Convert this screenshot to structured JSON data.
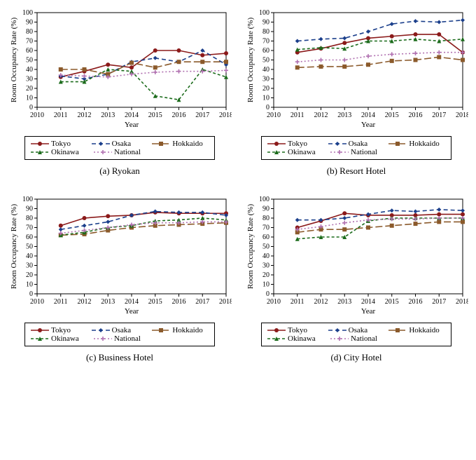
{
  "colors": {
    "tokyo": "#8b1a1a",
    "osaka": "#1b3f8b",
    "hokkaido": "#8b5a2b",
    "okinawa": "#1b6b1b",
    "national": "#b070b0",
    "background": "#ffffff",
    "axis": "#000000"
  },
  "x_years": [
    2011,
    2012,
    2013,
    2014,
    2015,
    2016,
    2017,
    2018
  ],
  "xlim": [
    2010,
    2018
  ],
  "ylim": [
    0,
    100
  ],
  "ytick_step": 10,
  "marker_radius": 3,
  "line_width": 1.6,
  "axis_label_y": "Room Occupancy Rate (%)",
  "axis_label_x": "Year",
  "series_meta": [
    {
      "key": "tokyo",
      "label": "Tokyo",
      "color_key": "tokyo",
      "dash": "",
      "marker": "circle"
    },
    {
      "key": "osaka",
      "label": "Osaka",
      "color_key": "osaka",
      "dash": "6 4",
      "marker": "diamond"
    },
    {
      "key": "hokkaido",
      "label": "Hokkaido",
      "color_key": "hokkaido",
      "dash": "10 4",
      "marker": "square"
    },
    {
      "key": "okinawa",
      "label": "Okinawa",
      "color_key": "okinawa",
      "dash": "4 3",
      "marker": "triangle"
    },
    {
      "key": "national",
      "label": "National",
      "color_key": "national",
      "dash": "2 3",
      "marker": "plus"
    }
  ],
  "legend_rows": [
    [
      "tokyo",
      "osaka",
      "hokkaido"
    ],
    [
      "okinawa",
      "national"
    ]
  ],
  "panels": [
    {
      "id": "ryokan",
      "caption": "(a) Ryokan",
      "series": {
        "tokyo": [
          32,
          38,
          45,
          42,
          60,
          60,
          55,
          57
        ],
        "osaka": [
          33,
          30,
          35,
          48,
          52,
          48,
          60,
          45
        ],
        "hokkaido": [
          40,
          40,
          35,
          47,
          42,
          48,
          48,
          48
        ],
        "okinawa": [
          27,
          27,
          40,
          38,
          12,
          8,
          40,
          32
        ],
        "national": [
          34,
          33,
          32,
          35,
          37,
          38,
          38,
          39
        ]
      }
    },
    {
      "id": "resort",
      "caption": "(b) Resort Hotel",
      "series": {
        "tokyo": [
          58,
          62,
          68,
          73,
          75,
          77,
          77,
          58
        ],
        "osaka": [
          70,
          72,
          73,
          80,
          88,
          91,
          90,
          92
        ],
        "hokkaido": [
          42,
          43,
          43,
          45,
          49,
          50,
          53,
          50
        ],
        "okinawa": [
          61,
          63,
          62,
          70,
          70,
          72,
          70,
          72
        ],
        "national": [
          48,
          50,
          50,
          54,
          56,
          57,
          58,
          58
        ]
      }
    },
    {
      "id": "business",
      "caption": "(c) Business Hotel",
      "series": {
        "tokyo": [
          72,
          80,
          82,
          83,
          86,
          85,
          85,
          85
        ],
        "osaka": [
          68,
          72,
          76,
          83,
          87,
          86,
          86,
          83
        ],
        "hokkaido": [
          62,
          63,
          67,
          70,
          72,
          73,
          74,
          75
        ],
        "okinawa": [
          62,
          65,
          70,
          72,
          77,
          78,
          80,
          78
        ],
        "national": [
          64,
          67,
          70,
          73,
          75,
          75,
          76,
          76
        ]
      }
    },
    {
      "id": "city",
      "caption": "(d) City Hotel",
      "series": {
        "tokyo": [
          70,
          77,
          85,
          83,
          83,
          83,
          84,
          84
        ],
        "osaka": [
          78,
          78,
          80,
          84,
          88,
          87,
          89,
          88
        ],
        "hokkaido": [
          65,
          68,
          68,
          70,
          72,
          74,
          76,
          76
        ],
        "okinawa": [
          58,
          60,
          60,
          77,
          80,
          80,
          80,
          80
        ],
        "national": [
          68,
          71,
          75,
          78,
          79,
          79,
          80,
          80
        ]
      }
    }
  ]
}
